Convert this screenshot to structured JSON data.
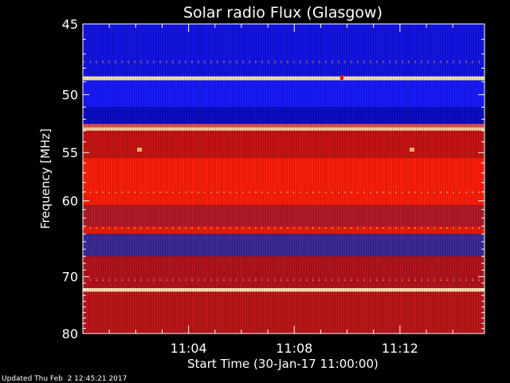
{
  "chart_data": {
    "type": "heatmap",
    "title": "Solar radio Flux (Glasgow)",
    "xlabel": "Start Time (30-Jan-17 11:00:00)",
    "ylabel": "Frequency [MHz]",
    "x_ticks": [
      "11:04",
      "11:08",
      "11:12"
    ],
    "x_tick_minutes": [
      4,
      8,
      12
    ],
    "xlim_minutes": [
      0,
      15.2
    ],
    "y_ticks": [
      45,
      50,
      55,
      60,
      70,
      80
    ],
    "ylim": [
      45,
      80
    ],
    "y_scale": "reciprocal",
    "footer": "Updated Thu Feb  2 12:45:21 2017",
    "bands": [
      {
        "from": 45.0,
        "to": 48.6,
        "color": "#1414e6"
      },
      {
        "from": 48.6,
        "to": 48.9,
        "color": "#ffe6b0"
      },
      {
        "from": 48.9,
        "to": 51.0,
        "color": "#1a1aff"
      },
      {
        "from": 51.0,
        "to": 52.4,
        "color": "#0c0cc8"
      },
      {
        "from": 52.4,
        "to": 52.7,
        "color": "#e05050"
      },
      {
        "from": 52.7,
        "to": 53.0,
        "color": "#ffd2a0"
      },
      {
        "from": 53.0,
        "to": 55.5,
        "color": "#c81414"
      },
      {
        "from": 55.5,
        "to": 60.5,
        "color": "#ff1e0a"
      },
      {
        "from": 60.5,
        "to": 63.0,
        "color": "#b41a2a"
      },
      {
        "from": 63.0,
        "to": 64.0,
        "color": "#e61e0e"
      },
      {
        "from": 64.0,
        "to": 67.0,
        "color": "#3c2a96"
      },
      {
        "from": 67.0,
        "to": 71.8,
        "color": "#b4141e"
      },
      {
        "from": 71.8,
        "to": 72.4,
        "color": "#ffe6b4"
      },
      {
        "from": 72.4,
        "to": 80.0,
        "color": "#be161a"
      }
    ],
    "colors": {
      "low": "#0000ff",
      "mid": "#c81414",
      "high": "#ffff80"
    }
  }
}
